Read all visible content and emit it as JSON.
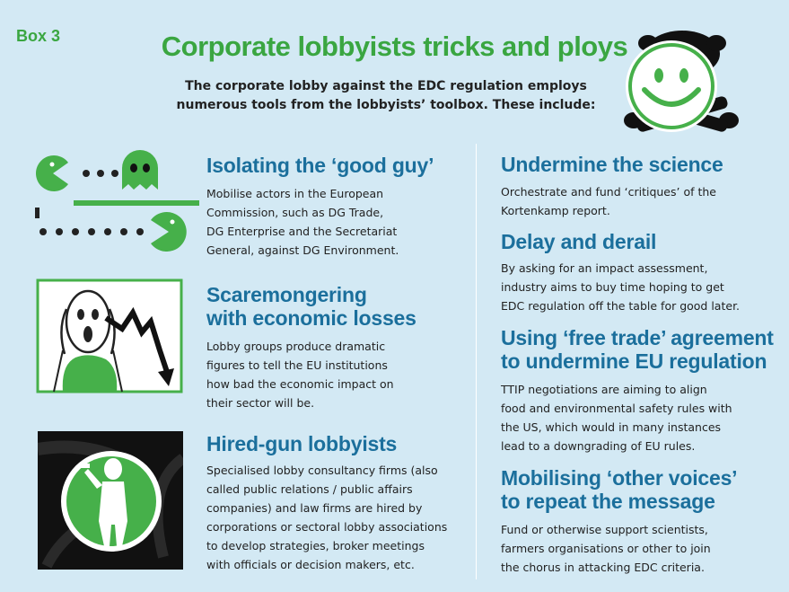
{
  "header": {
    "box_label": "Box 3",
    "title": "Corporate lobbyists tricks and ploys",
    "intro_line1": "The corporate lobby against the EDC regulation employs",
    "intro_line2": "numerous tools from the lobbyists’ toolbox. These include:"
  },
  "left": [
    {
      "heading": [
        "Isolating the ‘good guy’"
      ],
      "body": [
        "Mobilise actors in the European",
        "Commission, such as DG Trade,",
        "DG Enterprise and the Secretariat",
        "General, against DG Environment."
      ]
    },
    {
      "heading": [
        "Scaremongering",
        "with economic losses"
      ],
      "body": [
        "Lobby groups produce dramatic",
        "figures to tell the EU institutions",
        "how bad the economic impact on",
        "their sector will be."
      ]
    },
    {
      "heading": [
        "Hired-gun lobbyists"
      ],
      "body": [
        "Specialised lobby consultancy firms (also",
        "called public relations / public affairs",
        "companies) and law firms are hired by",
        "corporations or sectoral lobby associations",
        "to develop strategies, broker meetings",
        "with officials or decision makers, etc."
      ]
    }
  ],
  "right": [
    {
      "heading": [
        "Undermine the science"
      ],
      "body": [
        "Orchestrate and fund ‘critiques’ of the",
        "Kortenkamp report."
      ]
    },
    {
      "heading": [
        "Delay and derail"
      ],
      "body": [
        "By asking for an impact assessment,",
        "industry aims to buy time hoping to get",
        "EDC regulation off the table for good later."
      ]
    },
    {
      "heading": [
        "Using ‘free trade’ agreement",
        "to undermine EU regulation"
      ],
      "body": [
        "TTIP negotiations are aiming to align",
        "food and environmental safety rules with",
        "the US, which would in many instances",
        "lead to a downgrading of EU rules."
      ]
    },
    {
      "heading": [
        "Mobilising ‘other voices’",
        "to repeat the message"
      ],
      "body": [
        "Fund or otherwise support scientists,",
        "farmers organisations or other to join",
        "the chorus in attacking EDC criteria."
      ]
    }
  ],
  "icons": {
    "smiley": "smiley-skull-icon",
    "pacman": "pacman-ghost-icon",
    "scream": "scream-chart-icon",
    "spy": "spy-gun-icon"
  },
  "colors": {
    "background": "#d3e9f4",
    "green": "#3aa641",
    "blue_heading": "#1b6f9c"
  }
}
